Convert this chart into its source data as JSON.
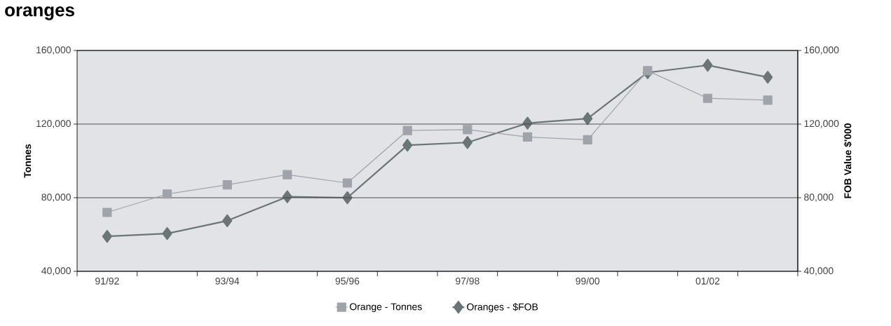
{
  "chart_data": {
    "type": "line",
    "title": "oranges",
    "categories": [
      "91/92",
      null,
      "93/94",
      null,
      "95/96",
      null,
      "97/98",
      null,
      "99/00",
      null,
      "01/02",
      null
    ],
    "series": [
      {
        "name": "Orange - Tonnes",
        "color": "#a0a3aa",
        "marker": "square",
        "axis": "y",
        "values": [
          72000,
          82000,
          87000,
          92500,
          88000,
          116500,
          117000,
          113000,
          111500,
          149000,
          134000,
          133000
        ]
      },
      {
        "name": "Oranges - $FOB",
        "color": "#6b7575",
        "marker": "diamond",
        "axis": "y2",
        "values": [
          59000,
          60500,
          67500,
          80500,
          80000,
          108500,
          110000,
          120500,
          123000,
          148000,
          152000,
          145500
        ]
      }
    ],
    "ylabel": "Tonnes",
    "y2label": "FOB Value $'000",
    "ylim": [
      40000,
      160000
    ],
    "yticks": [
      {
        "value": 40000,
        "label": "40,000"
      },
      {
        "value": 80000,
        "label": "80,000"
      },
      {
        "value": 120000,
        "label": "120,000"
      },
      {
        "value": 160000,
        "label": "160,000"
      }
    ],
    "y2lim": [
      40000,
      160000
    ],
    "y2ticks": [
      {
        "value": 40000,
        "label": "40,000"
      },
      {
        "value": 80000,
        "label": "80,000"
      },
      {
        "value": 120000,
        "label": "120,000"
      },
      {
        "value": 160000,
        "label": "160,000"
      }
    ],
    "grid": "y",
    "legend": "bottom",
    "line_style": "solid"
  }
}
